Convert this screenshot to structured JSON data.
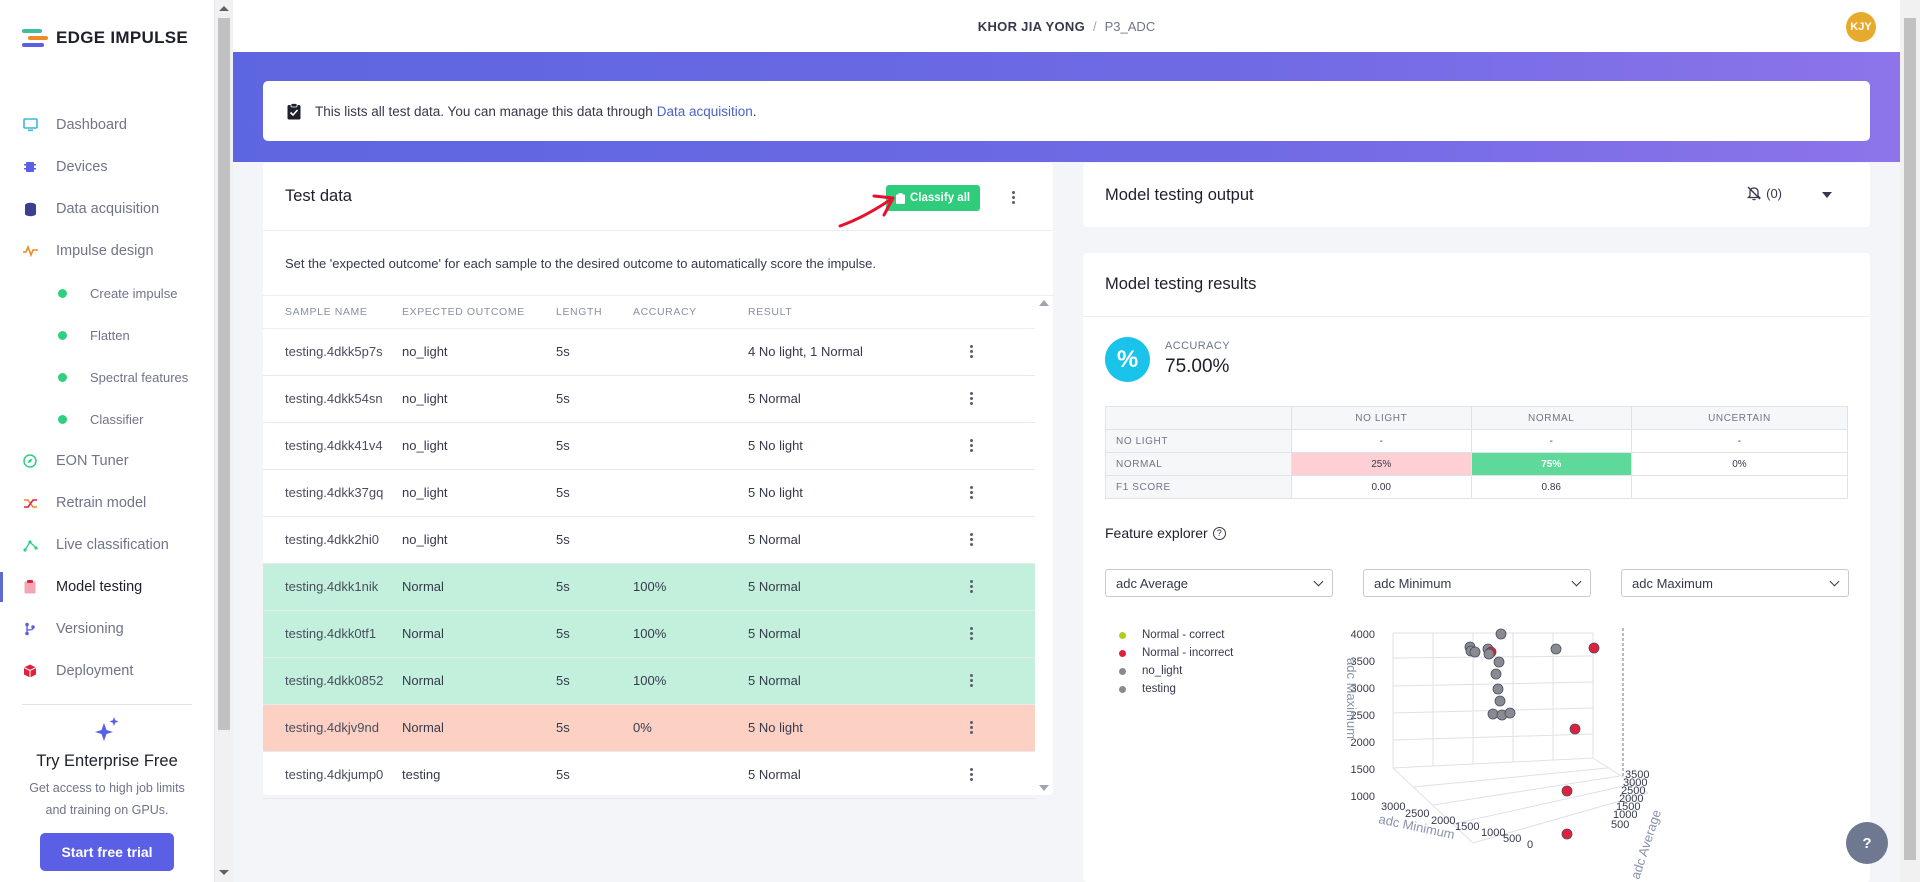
{
  "brand": {
    "name": "EDGE IMPULSE"
  },
  "sidebar": {
    "items": [
      {
        "label": "Dashboard",
        "icon": "monitor-icon"
      },
      {
        "label": "Devices",
        "icon": "chip-icon"
      },
      {
        "label": "Data acquisition",
        "icon": "database-icon"
      },
      {
        "label": "Impulse design",
        "icon": "pulse-icon"
      },
      {
        "label": "Create impulse",
        "sub": true
      },
      {
        "label": "Flatten",
        "sub": true
      },
      {
        "label": "Spectral features",
        "sub": true
      },
      {
        "label": "Classifier",
        "sub": true
      },
      {
        "label": "EON Tuner",
        "icon": "compass-icon"
      },
      {
        "label": "Retrain model",
        "icon": "shuffle-icon"
      },
      {
        "label": "Live classification",
        "icon": "graph-icon"
      },
      {
        "label": "Model testing",
        "icon": "clipboard-icon",
        "active": true
      },
      {
        "label": "Versioning",
        "icon": "branch-icon"
      },
      {
        "label": "Deployment",
        "icon": "cube-icon"
      }
    ],
    "enterprise": {
      "title": "Try Enterprise Free",
      "desc_line1": "Get access to high job limits",
      "desc_line2": "and training on GPUs.",
      "button": "Start free trial"
    }
  },
  "topbar": {
    "user": "KHOR JIA YONG",
    "separator": "/",
    "project": "P3_ADC",
    "avatar": "KJY"
  },
  "info": {
    "text": "This lists all test data. You can manage this data through",
    "link": "Data acquisition",
    "suffix": "."
  },
  "test_data": {
    "title": "Test data",
    "classify_button": "Classify all",
    "description": "Set the 'expected outcome' for each sample to the desired outcome to automatically score the impulse.",
    "columns": [
      "SAMPLE NAME",
      "EXPECTED OUTCOME",
      "LENGTH",
      "ACCURACY",
      "RESULT"
    ],
    "rows": [
      {
        "name": "testing.4dkk5p7s",
        "expected": "no_light",
        "length": "5s",
        "accuracy": "",
        "result": "4 No light, 1 Normal",
        "state": ""
      },
      {
        "name": "testing.4dkk54sn",
        "expected": "no_light",
        "length": "5s",
        "accuracy": "",
        "result": "5 Normal",
        "state": ""
      },
      {
        "name": "testing.4dkk41v4",
        "expected": "no_light",
        "length": "5s",
        "accuracy": "",
        "result": "5 No light",
        "state": ""
      },
      {
        "name": "testing.4dkk37gq",
        "expected": "no_light",
        "length": "5s",
        "accuracy": "",
        "result": "5 No light",
        "state": ""
      },
      {
        "name": "testing.4dkk2hi0",
        "expected": "no_light",
        "length": "5s",
        "accuracy": "",
        "result": "5 Normal",
        "state": ""
      },
      {
        "name": "testing.4dkk1nik",
        "expected": "Normal",
        "length": "5s",
        "accuracy": "100%",
        "result": "5 Normal",
        "state": "green"
      },
      {
        "name": "testing.4dkk0tf1",
        "expected": "Normal",
        "length": "5s",
        "accuracy": "100%",
        "result": "5 Normal",
        "state": "green"
      },
      {
        "name": "testing.4dkk0852",
        "expected": "Normal",
        "length": "5s",
        "accuracy": "100%",
        "result": "5 Normal",
        "state": "green"
      },
      {
        "name": "testing.4dkjv9nd",
        "expected": "Normal",
        "length": "5s",
        "accuracy": "0%",
        "result": "5 No light",
        "state": "red"
      },
      {
        "name": "testing.4dkjump0",
        "expected": "testing",
        "length": "5s",
        "accuracy": "",
        "result": "5 Normal",
        "state": ""
      }
    ]
  },
  "output": {
    "title": "Model testing output",
    "count": "(0)"
  },
  "results": {
    "title": "Model testing results",
    "accuracy_label": "ACCURACY",
    "accuracy_value": "75.00%",
    "accuracy_icon": "%",
    "confusion": {
      "columns": [
        "",
        "NO LIGHT",
        "NORMAL",
        "UNCERTAIN"
      ],
      "rows": [
        {
          "label": "NO LIGHT",
          "cells": [
            "-",
            "-",
            "-"
          ]
        },
        {
          "label": "NORMAL",
          "cells": [
            "25%",
            "75%",
            "0%"
          ]
        },
        {
          "label": "F1 SCORE",
          "cells": [
            "0.00",
            "0.86",
            ""
          ]
        }
      ]
    },
    "feature_explorer": {
      "title": "Feature explorer",
      "selects": [
        "adc Average",
        "adc Minimum",
        "adc Maximum"
      ],
      "legend": [
        {
          "label": "Normal - correct",
          "color": "#b5cc1f"
        },
        {
          "label": "Normal - incorrect",
          "color": "#e0203c"
        },
        {
          "label": "no_light",
          "color": "#8a8a92"
        },
        {
          "label": "testing",
          "color": "#8a8a92"
        }
      ],
      "axes": {
        "z_label": "adc Maximum",
        "z_ticks": [
          "4000",
          "3500",
          "3000",
          "2500",
          "2000",
          "1500",
          "1000"
        ],
        "x_label": "adc Minimum",
        "x_ticks": [
          "3000",
          "2500",
          "2000",
          "1500",
          "1000",
          "500",
          "0"
        ],
        "y_label": "adc Average",
        "y_ticks": [
          "3500",
          "3000",
          "2500",
          "2000",
          "1500",
          "1000",
          "500"
        ]
      }
    }
  },
  "help": "?"
}
